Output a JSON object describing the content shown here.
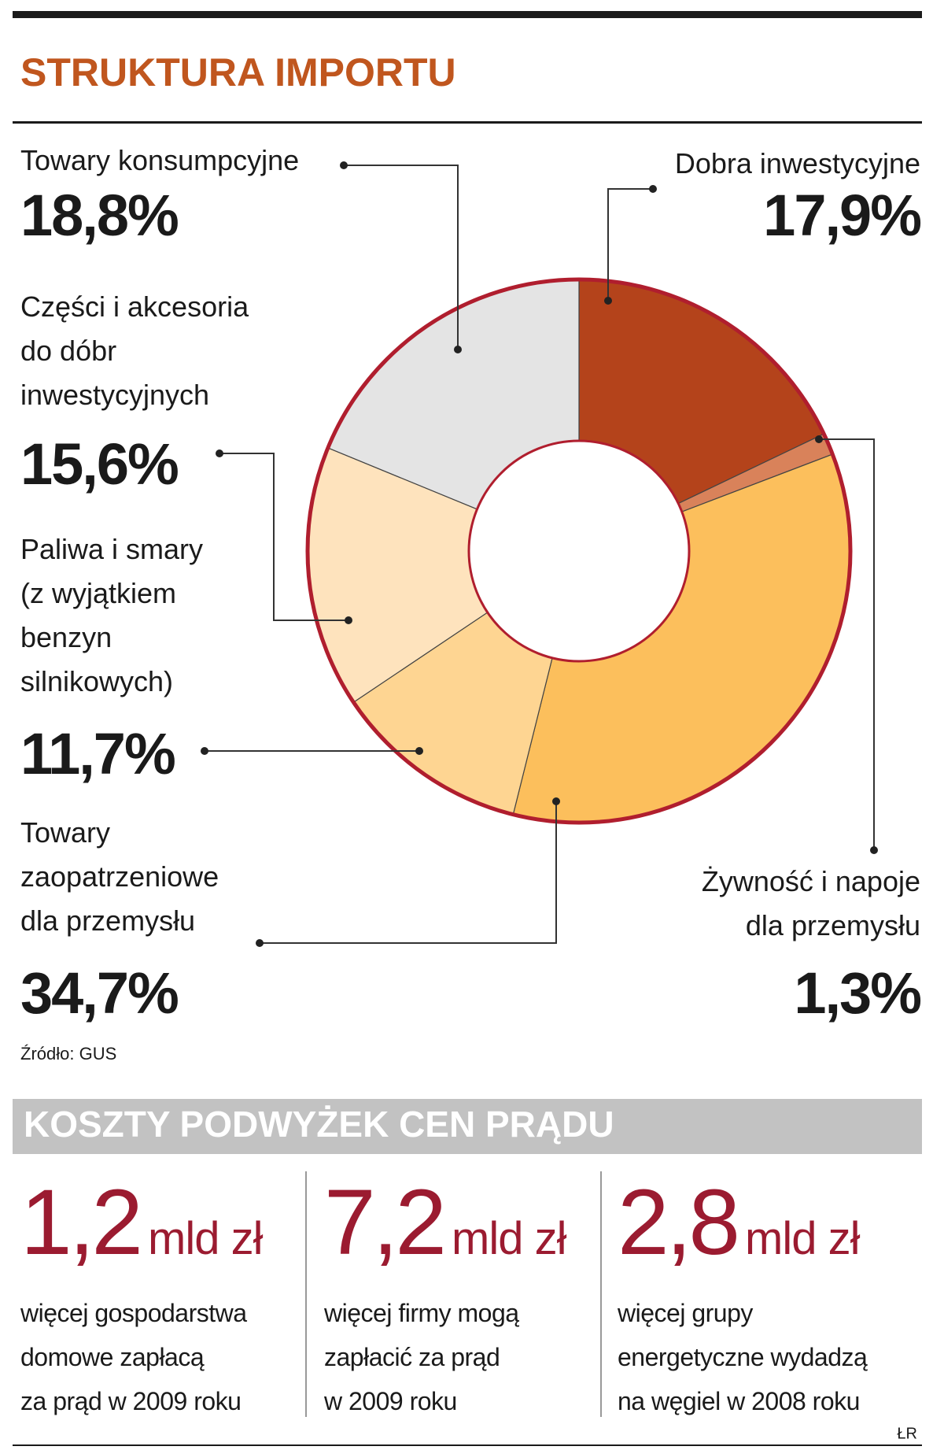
{
  "chart_data": {
    "type": "donut",
    "title": "STRUKTURA IMPORTU",
    "categories": [
      "Dobra inwestycyjne",
      "Żywność i napoje\ndla przemysłu",
      "Towary\nzaopatrzeniowe\ndla przemysłu",
      "Paliwa i smary\n(z wyjątkiem\nbenzyn\nsilnikowych)",
      "Części i akcesoria\ndo dóbr\ninwestycyjnych",
      "Towary konsumpcyjne"
    ],
    "values": [
      17.9,
      1.3,
      34.7,
      11.7,
      15.6,
      18.8
    ],
    "value_labels": [
      "17,9%",
      "1,3%",
      "34,7%",
      "11,7%",
      "15,6%",
      "18,8%"
    ],
    "colors": [
      "#b4431b",
      "#d9825a",
      "#fcbf5c",
      "#fed592",
      "#fee3bd",
      "#e4e4e4"
    ],
    "source": "Źródło: GUS"
  },
  "stats": {
    "title": "KOSZTY PODWYŻEK CEN PRĄDU",
    "items": [
      {
        "amount": "1,2",
        "unit": "mld zł",
        "text": "więcej gospodarstwa\ndomowe zapłacą\nza prąd w 2009 roku"
      },
      {
        "amount": "7,2",
        "unit": "mld zł",
        "text": "więcej firmy mogą\nzapłacić za prąd\nw 2009 roku"
      },
      {
        "amount": "2,8",
        "unit": "mld zł",
        "text": "więcej grupy\nenergetyczne wydadzą\nna węgiel w 2008 roku"
      }
    ],
    "credit": "ŁR"
  }
}
